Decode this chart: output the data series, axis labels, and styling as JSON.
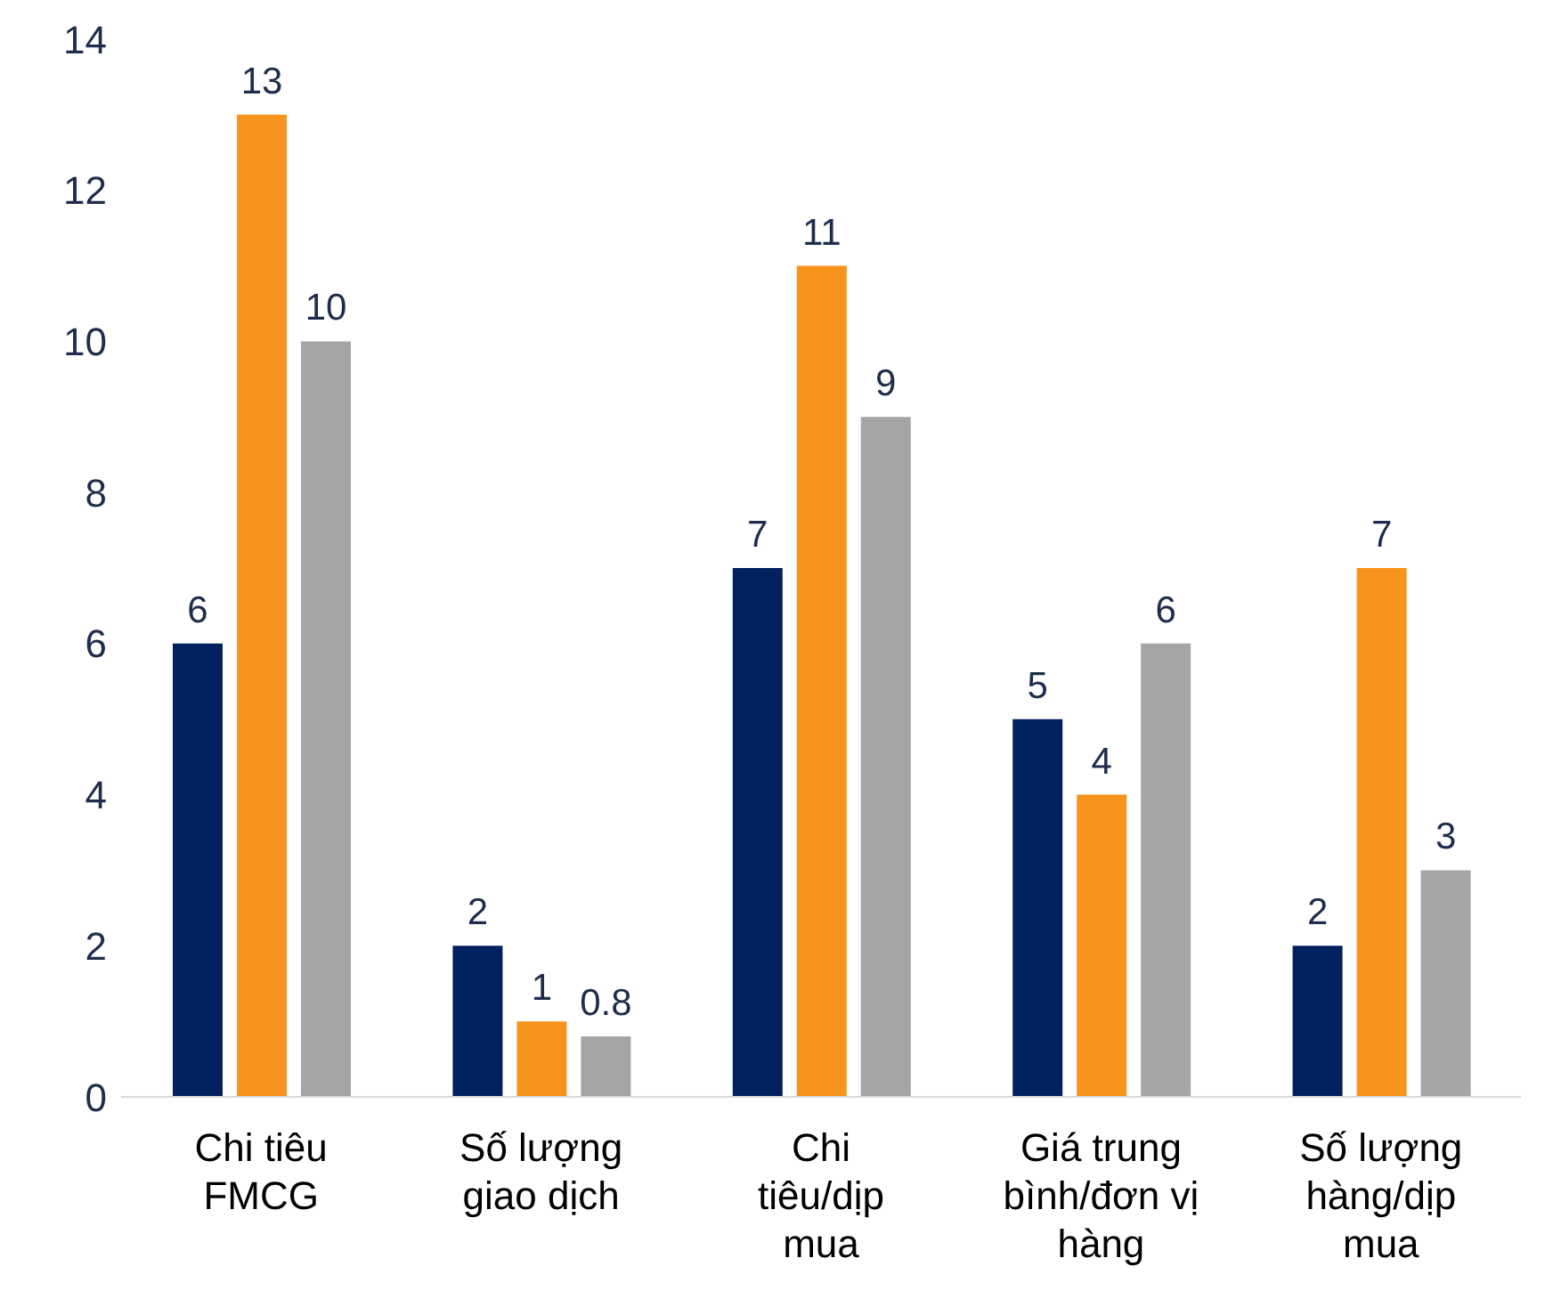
{
  "chart_data": {
    "type": "bar",
    "categories": [
      "Chi tiêu FMCG",
      "Số lượng giao dịch",
      "Chi tiêu/dịp mua",
      "Giá trung bình/đơn vị hàng",
      "Số lượng hàng/dịp mua"
    ],
    "series": [
      {
        "color": "#002060",
        "values": [
          6,
          2,
          7,
          5,
          2
        ]
      },
      {
        "color": "#f7941d",
        "values": [
          13,
          1,
          11,
          4,
          7
        ]
      },
      {
        "color": "#a5a5a5",
        "values": [
          10,
          0.8,
          9,
          6,
          3
        ]
      }
    ],
    "ylim": [
      0,
      14
    ],
    "yticks": [
      0,
      2,
      4,
      6,
      8,
      10,
      12,
      14
    ],
    "grid": false,
    "legend": false,
    "data_labels": true
  }
}
